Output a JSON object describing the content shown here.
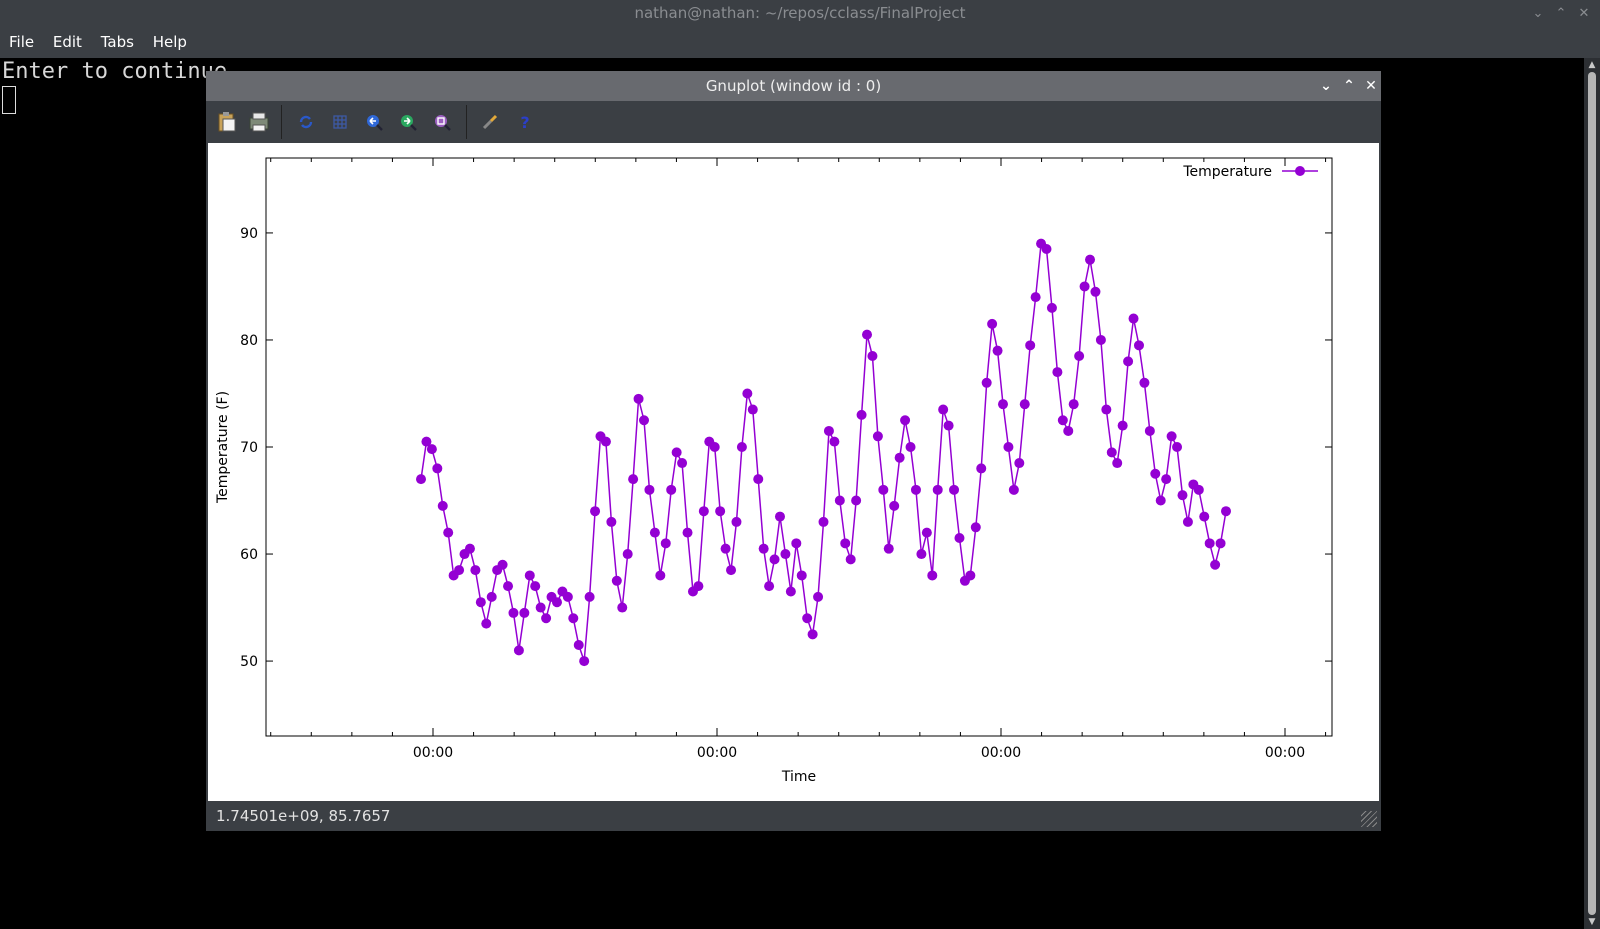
{
  "terminal": {
    "title": "nathan@nathan: ~/repos/cclass/FinalProject",
    "menu": [
      "File",
      "Edit",
      "Tabs",
      "Help"
    ],
    "text": "Enter to continue"
  },
  "gnuplot": {
    "title": "Gnuplot (window id : 0)",
    "toolbar": [
      "copy-icon",
      "print-icon",
      "replot-icon",
      "grid-icon",
      "zoom-previous-icon",
      "zoom-next-icon",
      "autoscale-icon",
      "config-icon",
      "help-icon"
    ],
    "status": "1.74501e+09,  85.7657"
  },
  "chart_data": {
    "type": "line",
    "xlabel": "Time",
    "ylabel": "Temperature (F)",
    "x_tick_labels": [
      "00:00",
      "00:00",
      "00:00",
      "00:00"
    ],
    "y_ticks": [
      50,
      60,
      70,
      80,
      90
    ],
    "ylim": [
      43,
      97
    ],
    "legend_position": "top-right",
    "series": [
      {
        "name": "Temperature",
        "color": "#9400D3",
        "marker": "circle",
        "values": [
          67.0,
          70.5,
          69.8,
          68.0,
          64.5,
          62.0,
          58.0,
          58.5,
          60.0,
          60.5,
          58.5,
          55.5,
          53.5,
          56.0,
          58.5,
          59.0,
          57.0,
          54.5,
          51.0,
          54.5,
          58.0,
          57.0,
          55.0,
          54.0,
          56.0,
          55.5,
          56.5,
          56.0,
          54.0,
          51.5,
          50.0,
          56.0,
          64.0,
          71.0,
          70.5,
          63.0,
          57.5,
          55.0,
          60.0,
          67.0,
          74.5,
          72.5,
          66.0,
          62.0,
          58.0,
          61.0,
          66.0,
          69.5,
          68.5,
          62.0,
          56.5,
          57.0,
          64.0,
          70.5,
          70.0,
          64.0,
          60.5,
          58.5,
          63.0,
          70.0,
          75.0,
          73.5,
          67.0,
          60.5,
          57.0,
          59.5,
          63.5,
          60.0,
          56.5,
          61.0,
          58.0,
          54.0,
          52.5,
          56.0,
          63.0,
          71.5,
          70.5,
          65.0,
          61.0,
          59.5,
          65.0,
          73.0,
          80.5,
          78.5,
          71.0,
          66.0,
          60.5,
          64.5,
          69.0,
          72.5,
          70.0,
          66.0,
          60.0,
          62.0,
          58.0,
          66.0,
          73.5,
          72.0,
          66.0,
          61.5,
          57.5,
          58.0,
          62.5,
          68.0,
          76.0,
          81.5,
          79.0,
          74.0,
          70.0,
          66.0,
          68.5,
          74.0,
          79.5,
          84.0,
          89.0,
          88.5,
          83.0,
          77.0,
          72.5,
          71.5,
          74.0,
          78.5,
          85.0,
          87.5,
          84.5,
          80.0,
          73.5,
          69.5,
          68.5,
          72.0,
          78.0,
          82.0,
          79.5,
          76.0,
          71.5,
          67.5,
          65.0,
          67.0,
          71.0,
          70.0,
          65.5,
          63.0,
          66.5,
          66.0,
          63.5,
          61.0,
          59.0,
          61.0,
          64.0
        ]
      }
    ]
  }
}
